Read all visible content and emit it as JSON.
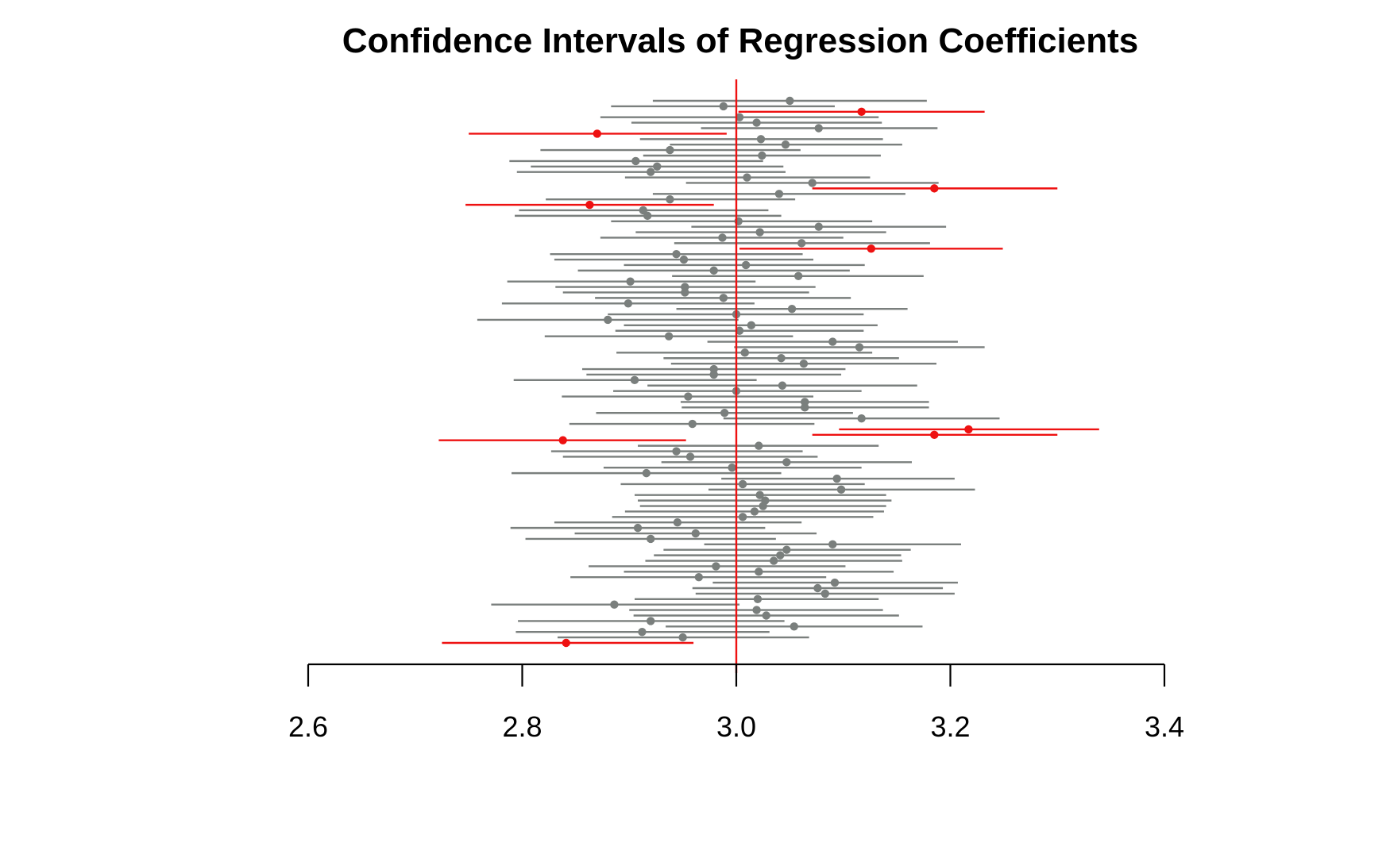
{
  "chart_data": {
    "type": "interval",
    "title": "Confidence Intervals of Regression Coefficients",
    "xlabel": "",
    "ylabel": "",
    "xlim": [
      2.6,
      3.4
    ],
    "x_ticks": [
      2.6,
      2.8,
      3.0,
      3.2,
      3.4
    ],
    "x_tick_labels": [
      "2.6",
      "2.8",
      "3.0",
      "3.2",
      "3.4"
    ],
    "true_value": 3.0,
    "grid": false,
    "legend": "none",
    "colors": {
      "covers_true": "#7a7f7d",
      "misses_true": "#ee1111",
      "reference_line": "#ee1111",
      "axis": "#000000"
    },
    "intervals": [
      {
        "estimate": 3.05,
        "lower": 2.922,
        "upper": 3.178,
        "covers": true
      },
      {
        "estimate": 2.988,
        "lower": 2.883,
        "upper": 3.092,
        "covers": true
      },
      {
        "estimate": 3.117,
        "lower": 3.002,
        "upper": 3.232,
        "covers": false
      },
      {
        "estimate": 3.003,
        "lower": 2.873,
        "upper": 3.133,
        "covers": true
      },
      {
        "estimate": 3.019,
        "lower": 2.902,
        "upper": 3.136,
        "covers": true
      },
      {
        "estimate": 3.077,
        "lower": 2.967,
        "upper": 3.188,
        "covers": true
      },
      {
        "estimate": 2.87,
        "lower": 2.75,
        "upper": 2.991,
        "covers": false
      },
      {
        "estimate": 3.023,
        "lower": 2.91,
        "upper": 3.137,
        "covers": true
      },
      {
        "estimate": 3.046,
        "lower": 2.938,
        "upper": 3.155,
        "covers": true
      },
      {
        "estimate": 2.938,
        "lower": 2.817,
        "upper": 3.06,
        "covers": true
      },
      {
        "estimate": 3.024,
        "lower": 2.913,
        "upper": 3.135,
        "covers": true
      },
      {
        "estimate": 2.906,
        "lower": 2.788,
        "upper": 3.025,
        "covers": true
      },
      {
        "estimate": 2.926,
        "lower": 2.808,
        "upper": 3.044,
        "covers": true
      },
      {
        "estimate": 2.92,
        "lower": 2.795,
        "upper": 3.046,
        "covers": true
      },
      {
        "estimate": 3.01,
        "lower": 2.896,
        "upper": 3.125,
        "covers": true
      },
      {
        "estimate": 3.071,
        "lower": 2.953,
        "upper": 3.189,
        "covers": true
      },
      {
        "estimate": 3.185,
        "lower": 3.071,
        "upper": 3.3,
        "covers": false
      },
      {
        "estimate": 3.04,
        "lower": 2.922,
        "upper": 3.158,
        "covers": true
      },
      {
        "estimate": 2.938,
        "lower": 2.822,
        "upper": 3.055,
        "covers": true
      },
      {
        "estimate": 2.863,
        "lower": 2.747,
        "upper": 2.979,
        "covers": false
      },
      {
        "estimate": 2.913,
        "lower": 2.797,
        "upper": 3.03,
        "covers": true
      },
      {
        "estimate": 2.917,
        "lower": 2.793,
        "upper": 3.042,
        "covers": true
      },
      {
        "estimate": 3.002,
        "lower": 2.883,
        "upper": 3.127,
        "covers": true
      },
      {
        "estimate": 3.077,
        "lower": 2.958,
        "upper": 3.196,
        "covers": true
      },
      {
        "estimate": 3.022,
        "lower": 2.906,
        "upper": 3.14,
        "covers": true
      },
      {
        "estimate": 2.987,
        "lower": 2.873,
        "upper": 3.1,
        "covers": true
      },
      {
        "estimate": 3.061,
        "lower": 2.942,
        "upper": 3.181,
        "covers": true
      },
      {
        "estimate": 3.126,
        "lower": 3.003,
        "upper": 3.249,
        "covers": false
      },
      {
        "estimate": 2.944,
        "lower": 2.826,
        "upper": 3.062,
        "covers": true
      },
      {
        "estimate": 2.951,
        "lower": 2.83,
        "upper": 3.072,
        "covers": true
      },
      {
        "estimate": 3.009,
        "lower": 2.895,
        "upper": 3.12,
        "covers": true
      },
      {
        "estimate": 2.979,
        "lower": 2.852,
        "upper": 3.106,
        "covers": true
      },
      {
        "estimate": 3.058,
        "lower": 2.94,
        "upper": 3.175,
        "covers": true
      },
      {
        "estimate": 2.901,
        "lower": 2.786,
        "upper": 3.018,
        "covers": true
      },
      {
        "estimate": 2.952,
        "lower": 2.831,
        "upper": 3.074,
        "covers": true
      },
      {
        "estimate": 2.952,
        "lower": 2.838,
        "upper": 3.068,
        "covers": true
      },
      {
        "estimate": 2.988,
        "lower": 2.868,
        "upper": 3.107,
        "covers": true
      },
      {
        "estimate": 2.899,
        "lower": 2.781,
        "upper": 3.017,
        "covers": true
      },
      {
        "estimate": 3.052,
        "lower": 2.944,
        "upper": 3.16,
        "covers": true
      },
      {
        "estimate": 3.0,
        "lower": 2.88,
        "upper": 3.119,
        "covers": true
      },
      {
        "estimate": 2.88,
        "lower": 2.758,
        "upper": 3.002,
        "covers": true
      },
      {
        "estimate": 3.014,
        "lower": 2.895,
        "upper": 3.132,
        "covers": true
      },
      {
        "estimate": 3.003,
        "lower": 2.887,
        "upper": 3.119,
        "covers": true
      },
      {
        "estimate": 2.937,
        "lower": 2.821,
        "upper": 3.053,
        "covers": true
      },
      {
        "estimate": 3.09,
        "lower": 2.973,
        "upper": 3.207,
        "covers": true
      },
      {
        "estimate": 3.115,
        "lower": 2.998,
        "upper": 3.232,
        "covers": true
      },
      {
        "estimate": 3.008,
        "lower": 2.888,
        "upper": 3.127,
        "covers": true
      },
      {
        "estimate": 3.042,
        "lower": 2.932,
        "upper": 3.152,
        "covers": true
      },
      {
        "estimate": 3.063,
        "lower": 2.939,
        "upper": 3.187,
        "covers": true
      },
      {
        "estimate": 2.979,
        "lower": 2.856,
        "upper": 3.102,
        "covers": true
      },
      {
        "estimate": 2.979,
        "lower": 2.86,
        "upper": 3.098,
        "covers": true
      },
      {
        "estimate": 2.905,
        "lower": 2.792,
        "upper": 3.019,
        "covers": true
      },
      {
        "estimate": 3.043,
        "lower": 2.917,
        "upper": 3.169,
        "covers": true
      },
      {
        "estimate": 3.0,
        "lower": 2.885,
        "upper": 3.117,
        "covers": true
      },
      {
        "estimate": 2.955,
        "lower": 2.837,
        "upper": 3.072,
        "covers": true
      },
      {
        "estimate": 3.064,
        "lower": 2.948,
        "upper": 3.18,
        "covers": true
      },
      {
        "estimate": 3.064,
        "lower": 2.949,
        "upper": 3.18,
        "covers": true
      },
      {
        "estimate": 2.989,
        "lower": 2.869,
        "upper": 3.109,
        "covers": true
      },
      {
        "estimate": 3.117,
        "lower": 2.988,
        "upper": 3.246,
        "covers": true
      },
      {
        "estimate": 2.959,
        "lower": 2.844,
        "upper": 3.073,
        "covers": true
      },
      {
        "estimate": 3.217,
        "lower": 3.096,
        "upper": 3.339,
        "covers": false
      },
      {
        "estimate": 3.185,
        "lower": 3.071,
        "upper": 3.3,
        "covers": false
      },
      {
        "estimate": 2.838,
        "lower": 2.722,
        "upper": 2.953,
        "covers": false
      },
      {
        "estimate": 3.021,
        "lower": 2.908,
        "upper": 3.133,
        "covers": true
      },
      {
        "estimate": 2.944,
        "lower": 2.827,
        "upper": 3.062,
        "covers": true
      },
      {
        "estimate": 2.957,
        "lower": 2.838,
        "upper": 3.076,
        "covers": true
      },
      {
        "estimate": 3.047,
        "lower": 2.93,
        "upper": 3.164,
        "covers": true
      },
      {
        "estimate": 2.996,
        "lower": 2.876,
        "upper": 3.117,
        "covers": true
      },
      {
        "estimate": 2.916,
        "lower": 2.79,
        "upper": 3.042,
        "covers": true
      },
      {
        "estimate": 3.094,
        "lower": 2.986,
        "upper": 3.204,
        "covers": true
      },
      {
        "estimate": 3.006,
        "lower": 2.892,
        "upper": 3.12,
        "covers": true
      },
      {
        "estimate": 3.098,
        "lower": 2.974,
        "upper": 3.223,
        "covers": true
      },
      {
        "estimate": 3.022,
        "lower": 2.905,
        "upper": 3.14,
        "covers": true
      },
      {
        "estimate": 3.027,
        "lower": 2.908,
        "upper": 3.145,
        "covers": true
      },
      {
        "estimate": 3.025,
        "lower": 2.91,
        "upper": 3.14,
        "covers": true
      },
      {
        "estimate": 3.017,
        "lower": 2.896,
        "upper": 3.138,
        "covers": true
      },
      {
        "estimate": 3.006,
        "lower": 2.884,
        "upper": 3.128,
        "covers": true
      },
      {
        "estimate": 2.945,
        "lower": 2.83,
        "upper": 3.061,
        "covers": true
      },
      {
        "estimate": 2.908,
        "lower": 2.789,
        "upper": 3.027,
        "covers": true
      },
      {
        "estimate": 2.962,
        "lower": 2.849,
        "upper": 3.075,
        "covers": true
      },
      {
        "estimate": 2.92,
        "lower": 2.803,
        "upper": 3.037,
        "covers": true
      },
      {
        "estimate": 3.09,
        "lower": 2.97,
        "upper": 3.21,
        "covers": true
      },
      {
        "estimate": 3.047,
        "lower": 2.932,
        "upper": 3.163,
        "covers": true
      },
      {
        "estimate": 3.041,
        "lower": 2.923,
        "upper": 3.154,
        "covers": true
      },
      {
        "estimate": 3.035,
        "lower": 2.915,
        "upper": 3.155,
        "covers": true
      },
      {
        "estimate": 2.981,
        "lower": 2.862,
        "upper": 3.102,
        "covers": true
      },
      {
        "estimate": 3.021,
        "lower": 2.895,
        "upper": 3.147,
        "covers": true
      },
      {
        "estimate": 2.965,
        "lower": 2.845,
        "upper": 3.084,
        "covers": true
      },
      {
        "estimate": 3.092,
        "lower": 2.978,
        "upper": 3.207,
        "covers": true
      },
      {
        "estimate": 3.076,
        "lower": 2.959,
        "upper": 3.193,
        "covers": true
      },
      {
        "estimate": 3.083,
        "lower": 2.962,
        "upper": 3.204,
        "covers": true
      },
      {
        "estimate": 3.02,
        "lower": 2.905,
        "upper": 3.133,
        "covers": true
      },
      {
        "estimate": 2.886,
        "lower": 2.771,
        "upper": 3.003,
        "covers": true
      },
      {
        "estimate": 3.019,
        "lower": 2.9,
        "upper": 3.137,
        "covers": true
      },
      {
        "estimate": 3.028,
        "lower": 2.904,
        "upper": 3.152,
        "covers": true
      },
      {
        "estimate": 2.92,
        "lower": 2.796,
        "upper": 3.045,
        "covers": true
      },
      {
        "estimate": 3.054,
        "lower": 2.934,
        "upper": 3.174,
        "covers": true
      },
      {
        "estimate": 2.912,
        "lower": 2.794,
        "upper": 3.031,
        "covers": true
      },
      {
        "estimate": 2.95,
        "lower": 2.833,
        "upper": 3.068,
        "covers": true
      },
      {
        "estimate": 2.841,
        "lower": 2.725,
        "upper": 2.96,
        "covers": false
      }
    ]
  }
}
